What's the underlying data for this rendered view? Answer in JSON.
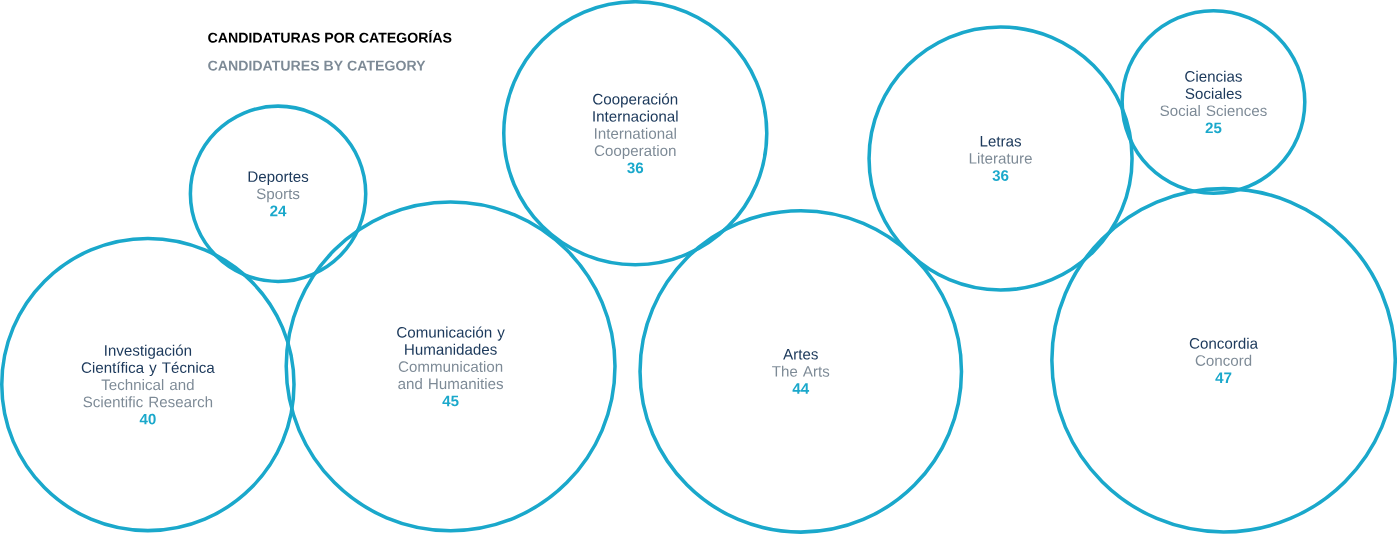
{
  "chart_data": {
    "type": "other",
    "title": "CANDIDATURAS POR CATEGORÍAS",
    "subtitle": "CANDIDATURES BY CATEGORY",
    "categories": [
      "Investigación Científica y Técnica",
      "Deportes",
      "Comunicación y Humanidades",
      "Cooperación Internacional",
      "Artes",
      "Letras",
      "Ciencias Sociales",
      "Concordia"
    ],
    "annotations": [
      "Technical and Scientific Research",
      "Sports",
      "Communication and Humanities",
      "International Cooperation",
      "The Arts",
      "Literature",
      "Social Sciences",
      "Concord"
    ],
    "values": [
      40,
      24,
      45,
      36,
      44,
      36,
      25,
      47
    ],
    "color": "#1aa8cb",
    "data_labels": true
  }
}
